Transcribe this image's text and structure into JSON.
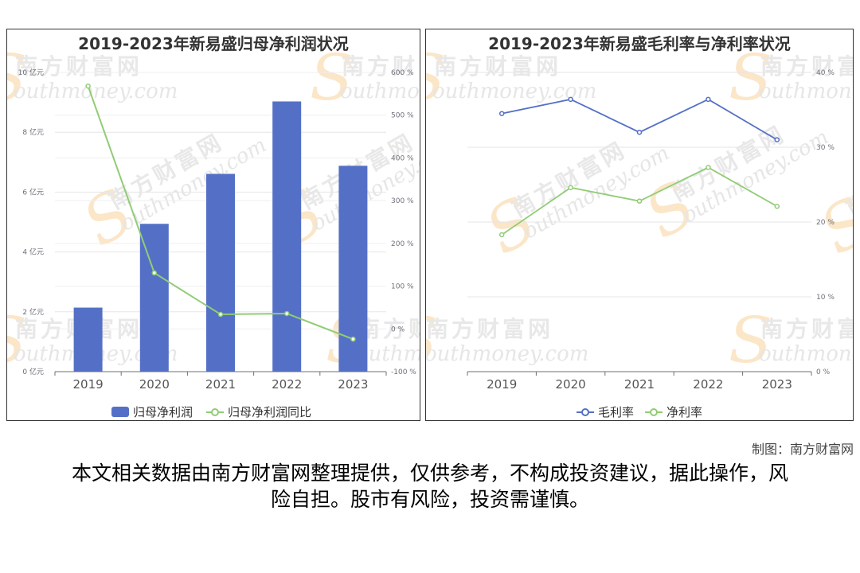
{
  "colors": {
    "bar": "#5470c6",
    "line_green": "#91cc75",
    "line_blue": "#5470c6",
    "grid": "#e6e6e6",
    "axis_text": "#6e7079"
  },
  "charts": {
    "left": {
      "title": "2019-2023年新易盛归母净利润状况",
      "y_left_ticks": [
        "0 亿元",
        "2 亿元",
        "4 亿元",
        "6 亿元",
        "8 亿元",
        "10 亿元"
      ],
      "y_right_ticks": [
        "-100 %",
        "0 %",
        "100 %",
        "200 %",
        "300 %",
        "400 %",
        "500 %",
        "600 %"
      ],
      "x_ticks": [
        "2019",
        "2020",
        "2021",
        "2022",
        "2023"
      ],
      "legend": [
        "归母净利润",
        "归母净利润同比"
      ]
    },
    "right": {
      "title": "2019-2023年新易盛毛利率与净利率状况",
      "y_ticks": [
        "0 %",
        "10 %",
        "20 %",
        "30 %",
        "40 %"
      ],
      "x_ticks": [
        "2019",
        "2020",
        "2021",
        "2022",
        "2023"
      ],
      "legend": [
        "毛利率",
        "净利率"
      ]
    }
  },
  "chart_data": [
    {
      "type": "bar",
      "title": "2019-2023年新易盛归母净利润状况",
      "categories": [
        "2019",
        "2020",
        "2021",
        "2022",
        "2023"
      ],
      "series": [
        {
          "name": "归母净利润",
          "type": "bar",
          "axis": "left",
          "values": [
            2.14,
            4.94,
            6.61,
            9.03,
            6.88
          ]
        },
        {
          "name": "归母净利润同比",
          "type": "line",
          "axis": "right",
          "values": [
            568,
            131,
            34,
            36,
            -24
          ]
        }
      ],
      "ylim_left": [
        0,
        10
      ],
      "ylim_right": [
        -100,
        600
      ]
    },
    {
      "type": "line",
      "title": "2019-2023年新易盛毛利率与净利率状况",
      "categories": [
        "2019",
        "2020",
        "2021",
        "2022",
        "2023"
      ],
      "series": [
        {
          "name": "毛利率",
          "values": [
            34.5,
            36.4,
            32.0,
            36.4,
            31.0
          ]
        },
        {
          "name": "净利率",
          "values": [
            18.3,
            24.6,
            22.8,
            27.3,
            22.1
          ]
        }
      ],
      "ylim": [
        0,
        40
      ]
    }
  ],
  "watermark": {
    "cn": "南方财富网",
    "en": "outhmoney.com",
    "s": "S"
  },
  "footer": {
    "credit": "制图：南方财富网",
    "disclaimer": "本文相关数据由南方财富网整理提供，仅供参考，不构成投资建议，据此操作，风险自担。股市有风险，投资需谨慎。"
  }
}
